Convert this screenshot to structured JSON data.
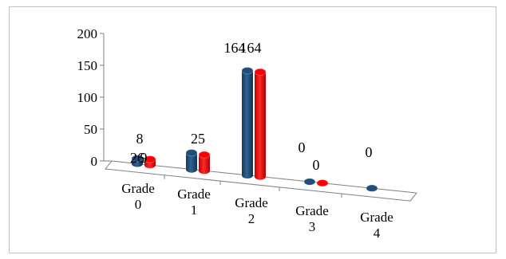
{
  "chart_data": {
    "type": "bar",
    "style": "3d-clustered-column",
    "categories": [
      "Grade 0",
      "Grade 1",
      "Grade 2",
      "Grade 3",
      "Grade 4"
    ],
    "category_lines": [
      [
        "Grade",
        "0"
      ],
      [
        "Grade",
        "1"
      ],
      [
        "Grade",
        "2"
      ],
      [
        "Grade",
        "3"
      ],
      [
        "Grade",
        "4"
      ]
    ],
    "series": [
      {
        "color": "#1f4e79",
        "values": [
          8,
          26,
          164,
          0,
          0
        ],
        "labels": [
          "8",
          "26",
          "164",
          "0",
          "0"
        ]
      },
      {
        "color": "#ff0000",
        "values": [
          9,
          25,
          164,
          0,
          null
        ],
        "labels": [
          "9",
          "25",
          "164",
          "0",
          ""
        ]
      }
    ],
    "yticks": [
      "0",
      "50",
      "100",
      "150",
      "200"
    ],
    "ylim": [
      0,
      200
    ],
    "grid": false,
    "legend": "none",
    "title": "",
    "xlabel": "",
    "ylabel": ""
  }
}
